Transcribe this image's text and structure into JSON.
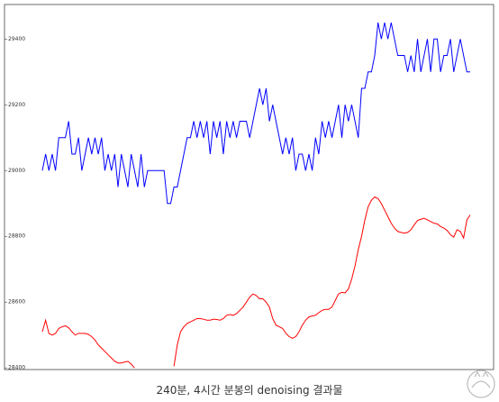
{
  "chart_data": {
    "type": "line",
    "caption": "240분, 4시간 분봉의 denoising 결과물",
    "ylim": [
      28395,
      29505
    ],
    "yticks": [
      28400,
      28600,
      28800,
      29000,
      29200,
      29400
    ],
    "series": [
      {
        "color": "#0000ff",
        "values": [
          29000,
          29050,
          29000,
          29050,
          29000,
          29100,
          29100,
          29100,
          29150,
          29050,
          29050,
          29100,
          29000,
          29050,
          29100,
          29050,
          29100,
          29050,
          29100,
          29000,
          29050,
          29000,
          29050,
          28950,
          29050,
          29000,
          28950,
          29050,
          29000,
          28950,
          29050,
          28950,
          29000,
          29000,
          29000,
          29000,
          29000,
          29000,
          28900,
          28900,
          28950,
          28950,
          29000,
          29050,
          29100,
          29100,
          29150,
          29100,
          29150,
          29100,
          29150,
          29050,
          29150,
          29100,
          29150,
          29050,
          29150,
          29100,
          29150,
          29100,
          29150,
          29150,
          29150,
          29100,
          29150,
          29200,
          29250,
          29200,
          29250,
          29150,
          29200,
          29150,
          29100,
          29050,
          29100,
          29050,
          29100,
          29000,
          29050,
          29050,
          29000,
          29050,
          29000,
          29100,
          29050,
          29150,
          29100,
          29150,
          29100,
          29150,
          29200,
          29100,
          29200,
          29150,
          29200,
          29150,
          29100,
          29250,
          29250,
          29300,
          29300,
          29350,
          29450,
          29400,
          29450,
          29400,
          29450,
          29400,
          29350,
          29350,
          29350,
          29300,
          29350,
          29300,
          29400,
          29300,
          29350,
          29400,
          29300,
          29400,
          29400,
          29300,
          29350,
          29350,
          29400,
          29300,
          29350,
          29400,
          29350,
          29300,
          29300
        ]
      },
      {
        "color": "#ff0000",
        "values": [
          28510,
          28545,
          28505,
          28500,
          28505,
          28520,
          28525,
          28528,
          28522,
          28510,
          28500,
          28505,
          28505,
          28505,
          28502,
          28495,
          28485,
          28470,
          28460,
          28450,
          28440,
          28430,
          28420,
          28415,
          28415,
          28418,
          28420,
          28412,
          28400,
          null,
          null,
          null,
          null,
          null,
          null,
          null,
          null,
          null,
          null,
          null,
          28405,
          28470,
          28510,
          28525,
          28535,
          28540,
          28545,
          28550,
          28550,
          28548,
          28545,
          28545,
          28548,
          28547,
          28545,
          28550,
          28560,
          28562,
          28560,
          28565,
          28575,
          28585,
          28600,
          28615,
          28625,
          28620,
          28610,
          28610,
          28600,
          28585,
          28550,
          28530,
          28525,
          28520,
          28505,
          28495,
          28490,
          28495,
          28510,
          28530,
          28545,
          28555,
          28558,
          28560,
          28568,
          28575,
          28578,
          28578,
          28585,
          28605,
          28625,
          28630,
          28628,
          28640,
          28670,
          28710,
          28760,
          28800,
          28850,
          28890,
          28910,
          28920,
          28915,
          28900,
          28880,
          28860,
          28840,
          28825,
          28815,
          28812,
          28810,
          28812,
          28820,
          28835,
          28848,
          28852,
          28855,
          28850,
          28845,
          28840,
          28838,
          28830,
          28825,
          28818,
          28805,
          28798,
          28820,
          28815,
          28795,
          28850,
          28865
        ]
      }
    ]
  }
}
